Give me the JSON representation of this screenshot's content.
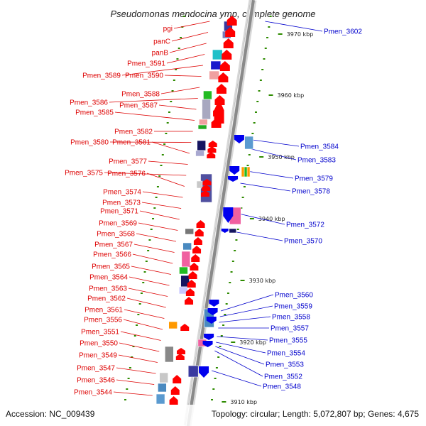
{
  "title": "Pseudomonas mendocina ymp, complete genome",
  "footer": {
    "accession": "Accession: NC_009439",
    "topology": "Topology: circular; Length: 5,072,807 bp; Genes: 4,675"
  },
  "ticks": [
    "3970 kbp",
    "3960 kbp",
    "3950 kbp",
    "3940 kbp",
    "3930 kbp",
    "3920 kbp",
    "3910 kbp"
  ],
  "left_labels": [
    "pgi",
    "panC",
    "panB",
    "Pmen_3591",
    "Pmen_3589",
    "Pmen_3590",
    "Pmen_3588",
    "Pmen_3586",
    "Pmen_3587",
    "Pmen_3585",
    "Pmen_3582",
    "Pmen_3580",
    "Pmen_3581",
    "Pmen_3577",
    "Pmen_3575",
    "Pmen_3576",
    "Pmen_3574",
    "Pmen_3573",
    "Pmen_3571",
    "Pmen_3569",
    "Pmen_3568",
    "Pmen_3567",
    "Pmen_3566",
    "Pmen_3565",
    "Pmen_3564",
    "Pmen_3563",
    "Pmen_3562",
    "Pmen_3561",
    "Pmen_3556",
    "Pmen_3551",
    "Pmen_3550",
    "Pmen_3549",
    "Pmen_3547",
    "Pmen_3546",
    "Pmen_3544"
  ],
  "right_labels": [
    "Pmen_3602",
    "Pmen_3584",
    "Pmen_3583",
    "Pmen_3579",
    "Pmen_3578",
    "Pmen_3572",
    "Pmen_3570",
    "Pmen_3560",
    "Pmen_3559",
    "Pmen_3558",
    "Pmen_3557",
    "Pmen_3555",
    "Pmen_3554",
    "Pmen_3553",
    "Pmen_3552",
    "Pmen_3548"
  ],
  "colors": {
    "left_label": "#dd0000",
    "right_label": "#0000cc",
    "forward_arrow": "#ff0000",
    "reverse_arrow": "#0000ee",
    "backbone": "#8a8a8a",
    "tick": "#2e8b00"
  }
}
